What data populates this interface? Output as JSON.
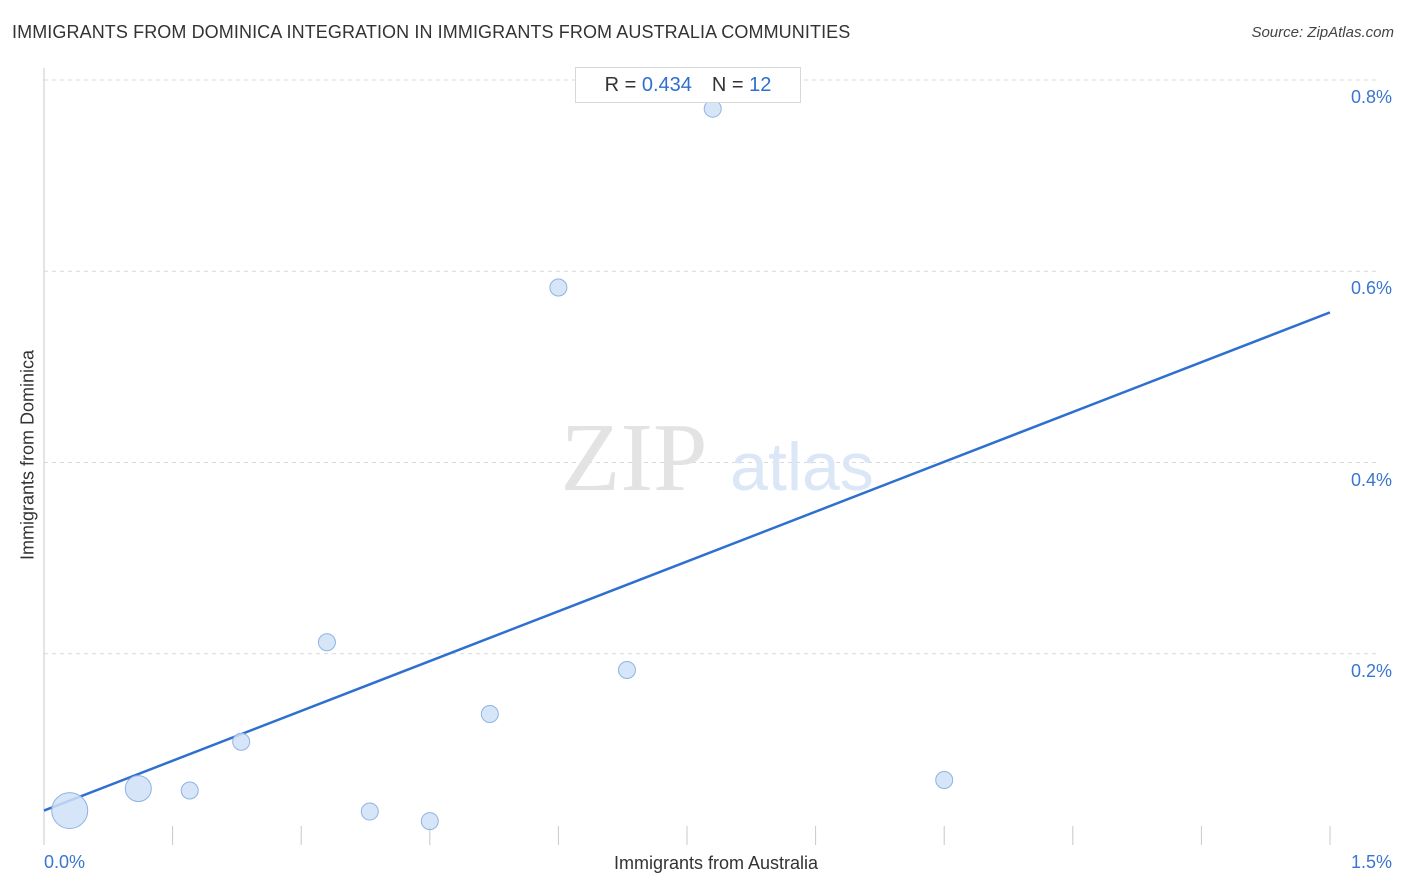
{
  "header": {
    "title": "IMMIGRANTS FROM DOMINICA INTEGRATION IN IMMIGRANTS FROM AUSTRALIA COMMUNITIES",
    "source": "Source: ZipAtlas.com"
  },
  "stats": {
    "r_label": "R =",
    "r_value": "0.434",
    "n_label": "N =",
    "n_value": "12"
  },
  "watermark": {
    "zip": "ZIP",
    "atlas": "atlas"
  },
  "colors": {
    "accent": "#2f6fd0",
    "point_fill": "#cfe0f7",
    "point_stroke": "#8fb3e3",
    "grid": "#d9d9d9"
  },
  "chart_data": {
    "type": "scatter",
    "title": "IMMIGRANTS FROM DOMINICA INTEGRATION IN IMMIGRANTS FROM AUSTRALIA COMMUNITIES",
    "xlabel": "Immigrants from Australia",
    "ylabel": "Immigrants from Dominica",
    "xlim": [
      0,
      1.5
    ],
    "ylim": [
      0,
      0.8
    ],
    "x_tick_labels": [
      "0.0%",
      "1.5%"
    ],
    "y_ticks": [
      0.2,
      0.4,
      0.6,
      0.8
    ],
    "y_tick_labels": [
      "0.2%",
      "0.4%",
      "0.6%",
      "0.8%"
    ],
    "grid": "horizontal dashed",
    "points": [
      {
        "x": 0.03,
        "y": 0.036,
        "size": 3
      },
      {
        "x": 0.11,
        "y": 0.059,
        "size": 2
      },
      {
        "x": 0.17,
        "y": 0.057,
        "size": 1
      },
      {
        "x": 0.23,
        "y": 0.108,
        "size": 1
      },
      {
        "x": 0.33,
        "y": 0.212,
        "size": 1
      },
      {
        "x": 0.38,
        "y": 0.035,
        "size": 1
      },
      {
        "x": 0.45,
        "y": 0.025,
        "size": 1
      },
      {
        "x": 0.52,
        "y": 0.137,
        "size": 1
      },
      {
        "x": 0.6,
        "y": 0.583,
        "size": 1
      },
      {
        "x": 0.68,
        "y": 0.183,
        "size": 1
      },
      {
        "x": 0.78,
        "y": 0.77,
        "size": 1
      },
      {
        "x": 1.05,
        "y": 0.068,
        "size": 1
      }
    ],
    "trendline": {
      "x": [
        0,
        1.5
      ],
      "y": [
        0.036,
        0.557
      ]
    }
  }
}
